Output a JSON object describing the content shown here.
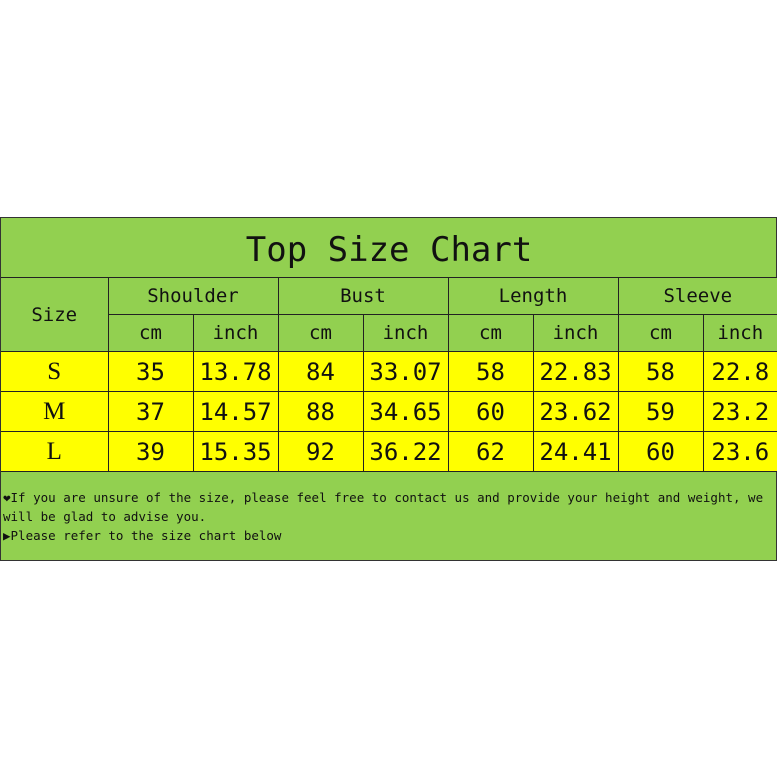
{
  "title": "Top Size Chart",
  "colors": {
    "header_bg": "#92d050",
    "row_bg": "#ffff00"
  },
  "columns": {
    "size": "Size",
    "groups": [
      "Shoulder",
      "Bust",
      "Length",
      "Sleeve"
    ],
    "units": [
      "cm",
      "inch"
    ]
  },
  "rows": [
    {
      "size": "S",
      "values": [
        "35",
        "13.78",
        "84",
        "33.07",
        "58",
        "22.83",
        "58",
        "22.8"
      ]
    },
    {
      "size": "M",
      "values": [
        "37",
        "14.57",
        "88",
        "34.65",
        "60",
        "23.62",
        "59",
        "23.2"
      ]
    },
    {
      "size": "L",
      "values": [
        "39",
        "15.35",
        "92",
        "36.22",
        "62",
        "24.41",
        "60",
        "23.6"
      ]
    }
  ],
  "notes": [
    {
      "icon": "heart-icon",
      "glyph": "❤",
      "text": "If you are unsure of the size, please feel free to contact us and provide your height and weight, we will be glad to advise you."
    },
    {
      "icon": "triangle-right-icon",
      "glyph": "▶",
      "text": "Please refer to the size chart below"
    }
  ]
}
